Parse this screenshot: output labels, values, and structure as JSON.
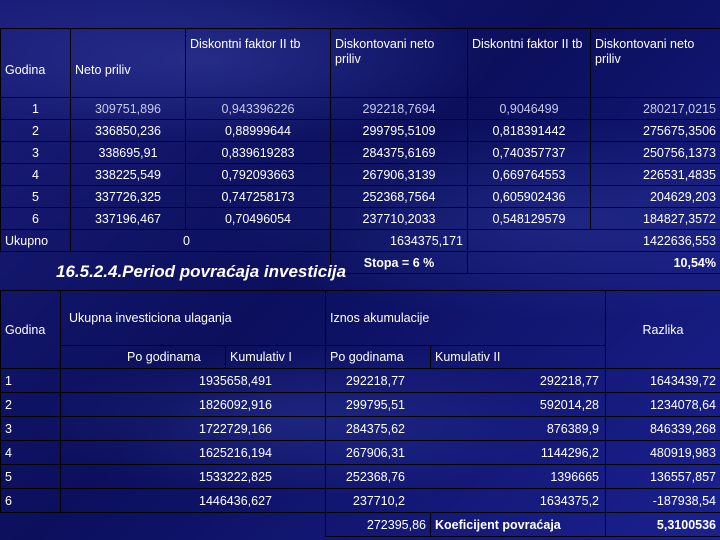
{
  "table1": {
    "headers": [
      "Godina",
      "Neto priliv",
      "Diskontni faktor II tb",
      "Diskontovani neto priliv",
      "Diskontni faktor II tb",
      "Diskontovani neto priliv"
    ],
    "rows": [
      [
        "1",
        "309751,896",
        "0,943396226",
        "292218,7694",
        "0,9046499",
        "280217,0215"
      ],
      [
        "2",
        "336850,236",
        "0,88999644",
        "299795,5109",
        "0,818391442",
        "275675,3506"
      ],
      [
        "3",
        "338695,91",
        "0,839619283",
        "284375,6169",
        "0,740357737",
        "250756,1373"
      ],
      [
        "4",
        "338225,549",
        "0,792093663",
        "267906,3139",
        "0,669764553",
        "226531,4835"
      ],
      [
        "5",
        "337726,325",
        "0,747258173",
        "252368,7564",
        "0,605902436",
        "204629,203"
      ],
      [
        "6",
        "337196,467",
        "0,70496054",
        "237710,2033",
        "0,548129579",
        "184827,3572"
      ]
    ],
    "total": {
      "label": "Ukupno",
      "value1": "0",
      "value2": "1634375,171",
      "value3": "1422636,553"
    },
    "rate": {
      "label": "Stopa = 6 %",
      "value": "10,54%"
    }
  },
  "section_title": "16.5.2.4.Period povraćaja investicija",
  "table2": {
    "head": {
      "godina": "Godina",
      "investment": "Ukupna investiciona ulaganja",
      "accumulation": "Iznos akumulacije",
      "difference": "Razlika",
      "per_year": "Po godinama",
      "cumulative1": "Kumulativ I",
      "per_year2": "Po godinama",
      "cumulative2": "Kumulativ II"
    },
    "rows": [
      [
        "1",
        "1935658,491",
        "292218,77",
        "292218,77",
        "1643439,72"
      ],
      [
        "2",
        "1826092,916",
        "299795,51",
        "592014,28",
        "1234078,64"
      ],
      [
        "3",
        "1722729,166",
        "284375,62",
        "876389,9",
        "846339,268"
      ],
      [
        "4",
        "1625216,194",
        "267906,31",
        "1144296,2",
        "480919,983"
      ],
      [
        "5",
        "1533222,825",
        "252368,76",
        "1396665",
        "136557,857"
      ],
      [
        "6",
        "1446436,627",
        "237710,2",
        "1634375,2",
        "-187938,54"
      ]
    ],
    "footer": {
      "value": "272395,86",
      "label": "Koeficijent povraćaja",
      "result": "5,3100536"
    }
  }
}
